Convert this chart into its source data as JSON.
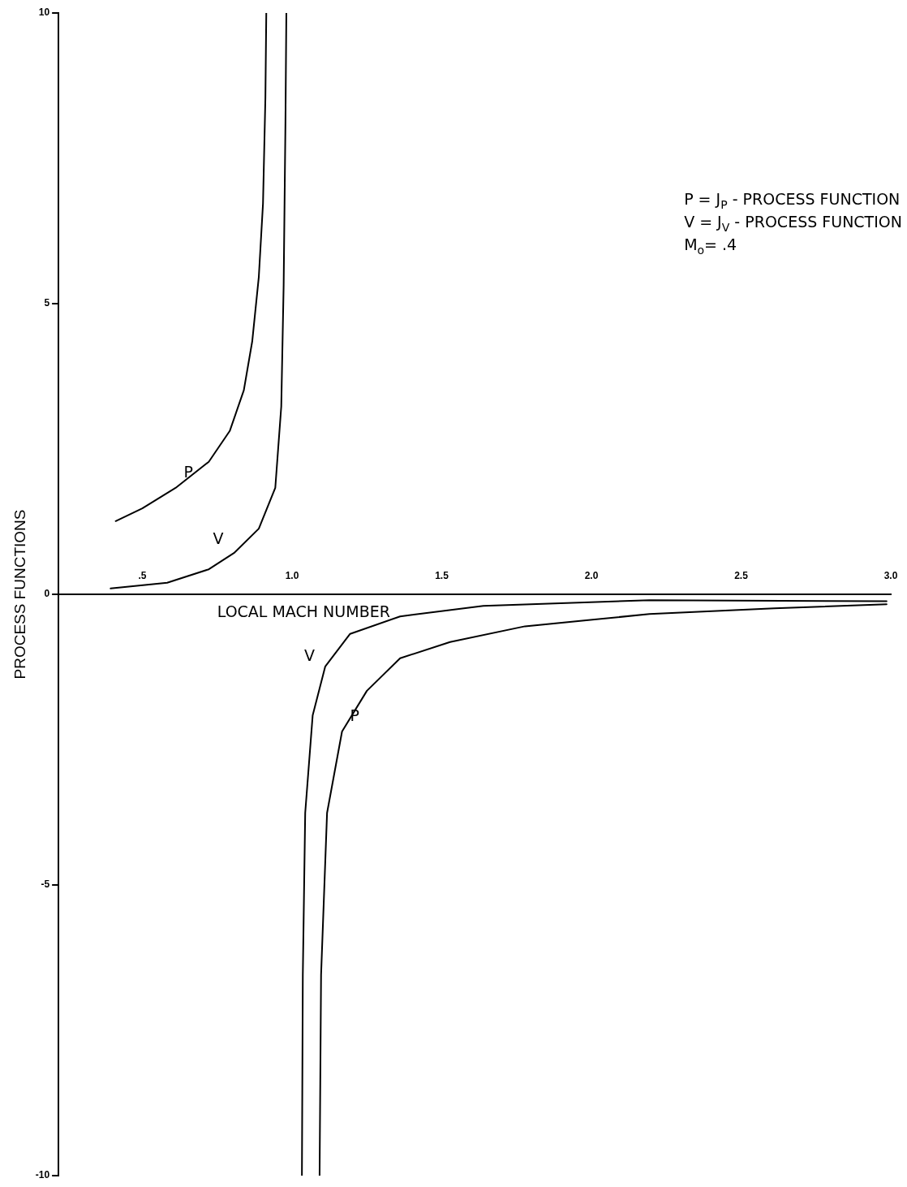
{
  "chart_data": {
    "type": "line",
    "ylabel": "PROCESS FUNCTIONS",
    "xlabel": "LOCAL MACH NUMBER",
    "xlim": [
      0.22,
      3.0
    ],
    "xticks": [
      {
        "value": 0.5,
        "label": ".5"
      },
      1.5,
      {
        "value": 1.0,
        "label": "1.0"
      },
      {
        "value": 2.0,
        "label": "2.0"
      },
      2.5,
      {
        "value": 3.0,
        "label": "3.0"
      }
    ],
    "ylim": [
      -10,
      10
    ],
    "yticks": [
      -10,
      -5,
      0,
      5,
      10
    ],
    "grid": false,
    "legend": false,
    "marker": "none",
    "line_style": "solid",
    "series": [
      {
        "name": "P",
        "color": "#000000",
        "x": [
          0.411,
          0.5,
          0.611,
          0.722,
          0.792,
          0.839,
          0.867,
          0.889,
          0.903,
          0.911,
          0.914
        ],
        "values": [
          1.26,
          1.48,
          1.83,
          2.28,
          2.81,
          3.51,
          4.35,
          5.46,
          6.72,
          8.54,
          10
        ]
      },
      {
        "name": "V",
        "color": "#000000",
        "x": [
          0.394,
          0.583,
          0.722,
          0.806,
          0.889,
          0.944,
          0.964,
          0.972,
          0.978,
          0.981
        ],
        "values": [
          0.1,
          0.2,
          0.43,
          0.71,
          1.13,
          1.83,
          3.23,
          5.32,
          8.12,
          10
        ]
      },
      {
        "name": "V",
        "color": "#000000",
        "x": [
          1.033,
          1.036,
          1.044,
          1.069,
          1.111,
          1.194,
          1.361,
          1.639,
          2.194,
          2.986
        ],
        "values": [
          -10,
          -6.55,
          -3.76,
          -2.08,
          -1.24,
          -0.68,
          -0.38,
          -0.2,
          -0.1,
          -0.12
        ]
      },
      {
        "name": "P",
        "color": "#000000",
        "x": [
          1.092,
          1.097,
          1.117,
          1.167,
          1.25,
          1.361,
          1.528,
          1.778,
          2.194,
          2.611,
          2.986
        ],
        "values": [
          -10,
          -6.55,
          -3.76,
          -2.36,
          -1.66,
          -1.1,
          -0.82,
          -0.55,
          -0.34,
          -0.24,
          -0.17
        ]
      }
    ],
    "annotations": [
      "P = J$_{P}$ - PROCESS FUNCTION",
      "V = J$_{V}$ - PROCESS FUNCTION",
      "M$_{o}$= .4"
    ]
  }
}
